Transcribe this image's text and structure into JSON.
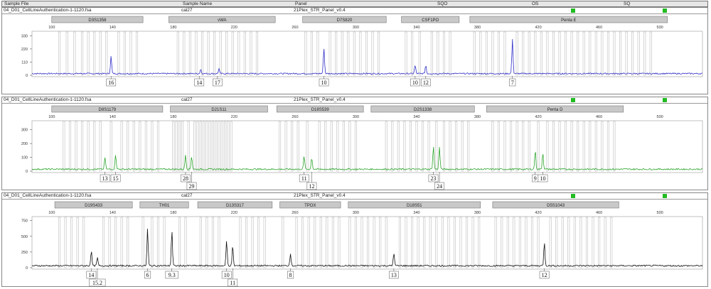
{
  "header": {
    "sample_file": "Sample File",
    "sample_name": "Sample Name",
    "panel": "Panel",
    "sqo": "SQO",
    "os": "OS",
    "sq": "SQ"
  },
  "panels": [
    {
      "file": "04_D01_CellLineAuthentication-1-1120.fsa",
      "sample": "cal27",
      "panel_name": "21Plex_STR_Panel_v0.4",
      "color": "#3030c8",
      "ymax": 350,
      "yticks": [
        0,
        110,
        220,
        330
      ],
      "ytick_labels": [
        "0",
        "110",
        "220",
        "330"
      ],
      "markers": [
        {
          "name": "D3S1358",
          "x0": 100,
          "x1": 160
        },
        {
          "name": "vWA",
          "x0": 177,
          "x1": 247
        },
        {
          "name": "D7S820",
          "x0": 265,
          "x1": 320
        },
        {
          "name": "CSF1PO",
          "x0": 330,
          "x1": 368
        },
        {
          "name": "Penta E",
          "x0": 375,
          "x1": 505
        }
      ],
      "peaks": [
        {
          "x": 139,
          "h": 145
        },
        {
          "x": 198,
          "h": 38
        },
        {
          "x": 210,
          "h": 40
        },
        {
          "x": 279,
          "h": 215
        },
        {
          "x": 339,
          "h": 70
        },
        {
          "x": 346,
          "h": 70
        },
        {
          "x": 403,
          "h": 285
        }
      ],
      "alleles": [
        {
          "label": "16",
          "x": 139,
          "row": 0
        },
        {
          "label": "14",
          "x": 197,
          "row": 0
        },
        {
          "label": "17",
          "x": 209,
          "row": 0
        },
        {
          "label": "10",
          "x": 279,
          "row": 0
        },
        {
          "label": "10",
          "x": 339,
          "row": 0
        },
        {
          "label": "12",
          "x": 346,
          "row": 0
        },
        {
          "label": "7",
          "x": 403,
          "row": 0
        }
      ],
      "bins": [
        105,
        110,
        115,
        120,
        124,
        128,
        132,
        136,
        144,
        148,
        152,
        156,
        183,
        187,
        191,
        195,
        199,
        203,
        207,
        211,
        215,
        219,
        223,
        227,
        231,
        235,
        267,
        271,
        275,
        283,
        287,
        291,
        295,
        299,
        303,
        307,
        311,
        315,
        333,
        337,
        342,
        350,
        354,
        358,
        362,
        378,
        382,
        386,
        390,
        394,
        398,
        406,
        410,
        414,
        418,
        422,
        426,
        430,
        434,
        438,
        442,
        446,
        450,
        454,
        458,
        462,
        466,
        470,
        474,
        478,
        482,
        486,
        490,
        494
      ]
    },
    {
      "file": "04_D01_CellLineAuthentication-1-1120.fsa",
      "sample": "cal27",
      "panel_name": "21Plex_STR_Panel_v0.4",
      "color": "#2ea52e",
      "ymax": 350,
      "yticks": [
        0,
        100,
        200,
        300
      ],
      "ytick_labels": [
        "0",
        "100",
        "200",
        "300"
      ],
      "markers": [
        {
          "name": "D8S1179",
          "x0": 100,
          "x1": 173
        },
        {
          "name": "D21S11",
          "x0": 178,
          "x1": 242
        },
        {
          "name": "D18S539",
          "x0": 248,
          "x1": 305
        },
        {
          "name": "D2S1338",
          "x0": 310,
          "x1": 378
        },
        {
          "name": "Penta D",
          "x0": 386,
          "x1": 476
        }
      ],
      "peaks": [
        {
          "x": 135,
          "h": 85
        },
        {
          "x": 142,
          "h": 110
        },
        {
          "x": 188,
          "h": 105
        },
        {
          "x": 192,
          "h": 95
        },
        {
          "x": 266,
          "h": 95
        },
        {
          "x": 271,
          "h": 85
        },
        {
          "x": 351,
          "h": 165
        },
        {
          "x": 355,
          "h": 160
        },
        {
          "x": 418,
          "h": 140
        },
        {
          "x": 423,
          "h": 120
        }
      ],
      "alleles": [
        {
          "label": "13",
          "x": 135,
          "row": 0
        },
        {
          "label": "15",
          "x": 142,
          "row": 0
        },
        {
          "label": "28",
          "x": 188,
          "row": 0
        },
        {
          "label": "29",
          "x": 192,
          "row": 1
        },
        {
          "label": "11",
          "x": 266,
          "row": 0
        },
        {
          "label": "12",
          "x": 271,
          "row": 1
        },
        {
          "label": "23",
          "x": 351,
          "row": 0
        },
        {
          "label": "24",
          "x": 355,
          "row": 1
        },
        {
          "label": "9",
          "x": 418,
          "row": 0
        },
        {
          "label": "10",
          "x": 423,
          "row": 0
        }
      ],
      "bins": [
        108,
        112,
        116,
        120,
        124,
        128,
        132,
        139,
        146,
        150,
        154,
        158,
        162,
        166,
        170,
        180,
        182,
        184,
        186,
        190,
        194,
        196,
        198,
        200,
        202,
        204,
        206,
        208,
        210,
        212,
        214,
        216,
        218,
        250,
        254,
        258,
        262,
        268,
        276,
        280,
        284,
        288,
        292,
        296,
        300,
        320,
        324,
        328,
        332,
        336,
        340,
        344,
        348,
        353,
        358,
        362,
        366,
        370,
        374,
        390,
        394,
        398,
        402,
        406,
        410,
        414,
        420,
        426,
        430,
        434,
        438,
        442,
        446,
        450,
        454,
        458,
        462,
        466,
        470
      ]
    },
    {
      "file": "04_D01_CellLineAuthentication-1-1120.fsa",
      "sample": "cal27",
      "panel_name": "21Plex_STR_Panel_v0.4",
      "color": "#111111",
      "ymax": 780,
      "yticks": [
        0,
        250,
        500,
        750
      ],
      "ytick_labels": [
        "0",
        "250",
        "500",
        "750"
      ],
      "markers": [
        {
          "name": "D19S433",
          "x0": 102,
          "x1": 153
        },
        {
          "name": "TH01",
          "x0": 158,
          "x1": 190
        },
        {
          "name": "D13S317",
          "x0": 196,
          "x1": 245
        },
        {
          "name": "TPOX",
          "x0": 250,
          "x1": 290
        },
        {
          "name": "D18S51",
          "x0": 295,
          "x1": 382
        },
        {
          "name": "D5S1043",
          "x0": 390,
          "x1": 473
        }
      ],
      "peaks": [
        {
          "x": 126,
          "h": 240
        },
        {
          "x": 130,
          "h": 130
        },
        {
          "x": 163,
          "h": 590
        },
        {
          "x": 179,
          "h": 560
        },
        {
          "x": 215,
          "h": 400
        },
        {
          "x": 219,
          "h": 320
        },
        {
          "x": 257,
          "h": 200
        },
        {
          "x": 325,
          "h": 210
        },
        {
          "x": 424,
          "h": 380
        }
      ],
      "alleles": [
        {
          "label": "14",
          "x": 126,
          "row": 0
        },
        {
          "label": "15.2",
          "x": 130,
          "row": 1
        },
        {
          "label": "6",
          "x": 163,
          "row": 0
        },
        {
          "label": "9.3",
          "x": 179,
          "row": 0
        },
        {
          "label": "10",
          "x": 215,
          "row": 0
        },
        {
          "label": "11",
          "x": 219,
          "row": 1
        },
        {
          "label": "8",
          "x": 257,
          "row": 0
        },
        {
          "label": "13",
          "x": 325,
          "row": 0
        },
        {
          "label": "12",
          "x": 424,
          "row": 0
        }
      ],
      "bins": [
        105,
        109,
        113,
        117,
        121,
        134,
        138,
        142,
        146,
        150,
        160,
        166,
        170,
        174,
        184,
        188,
        198,
        202,
        206,
        210,
        224,
        228,
        232,
        236,
        240,
        252,
        261,
        265,
        269,
        273,
        277,
        281,
        285,
        289,
        296,
        300,
        304,
        308,
        312,
        316,
        320,
        329,
        333,
        337,
        341,
        345,
        349,
        353,
        357,
        361,
        365,
        369,
        373,
        377,
        381,
        392,
        396,
        400,
        404,
        408,
        412,
        416,
        420,
        428,
        432,
        436,
        440,
        444,
        448,
        452,
        456,
        460,
        464,
        468
      ]
    }
  ],
  "shared_axis": {
    "xmin": 87,
    "xmax": 528,
    "ticks": [
      100,
      140,
      180,
      220,
      260,
      300,
      340,
      380,
      420,
      460,
      500
    ],
    "tick_labels": [
      "100",
      "140",
      "180",
      "220",
      "260",
      "300",
      "340",
      "380",
      "420",
      "460",
      "500"
    ]
  },
  "icons": {
    "quality-ok": "green-square-icon"
  },
  "colors": {
    "marker_box": "#c8c8c8",
    "bin": "#c6c6c6",
    "quality_ok": "#22bb22"
  }
}
